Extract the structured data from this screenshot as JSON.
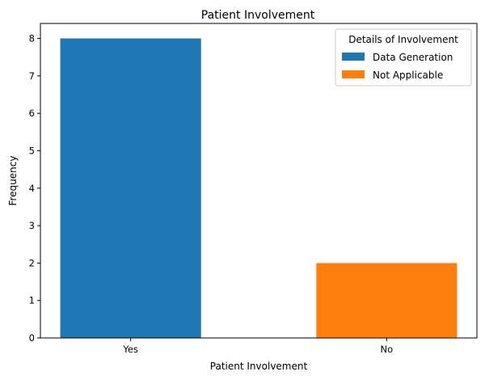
{
  "chart_data": {
    "type": "bar",
    "title": "Patient Involvement",
    "xlabel": "Patient Involvement",
    "ylabel": "Frequency",
    "categories": [
      "Yes",
      "No"
    ],
    "values": [
      8,
      2
    ],
    "bar_colors": [
      "#1f77b4",
      "#ff7f0e"
    ],
    "ylim": [
      0,
      8.4
    ],
    "yticks": [
      0,
      1,
      2,
      3,
      4,
      5,
      6,
      7,
      8
    ],
    "grid": false,
    "legend": {
      "title": "Details of Involvement",
      "placement": "top-right",
      "entries": [
        {
          "label": "Data Generation",
          "color": "#1f77b4"
        },
        {
          "label": "Not Applicable",
          "color": "#ff7f0e"
        }
      ]
    }
  }
}
